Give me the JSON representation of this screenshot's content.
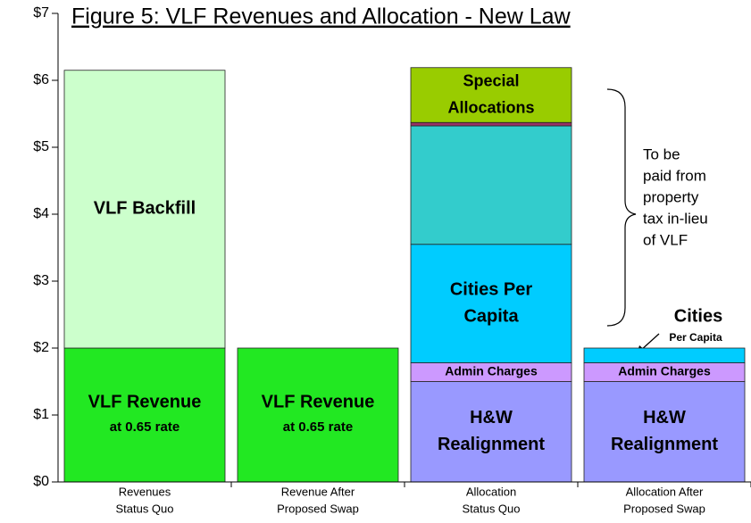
{
  "chart_data": {
    "type": "stacked_bar",
    "title": "Figure 5:  VLF Revenues and Allocation - New Law",
    "categories": [
      [
        "Revenues",
        "Status Quo"
      ],
      [
        "Revenue After",
        "Proposed Swap"
      ],
      [
        "Allocation",
        "Status Quo"
      ],
      [
        "Allocation After",
        "Proposed Swap"
      ]
    ],
    "ylim": [
      0,
      7
    ],
    "yticks": [
      {
        "value": 0,
        "label": "$0"
      },
      {
        "value": 1,
        "label": "$1"
      },
      {
        "value": 2,
        "label": "$2"
      },
      {
        "value": 3,
        "label": "$3"
      },
      {
        "value": 4,
        "label": "$4"
      },
      {
        "value": 5,
        "label": "$5"
      },
      {
        "value": 6,
        "label": "$6"
      },
      {
        "value": 7,
        "label": "$7"
      }
    ],
    "series": [
      {
        "color": "#22e822",
        "values": [
          2.0,
          2.0,
          null,
          null
        ],
        "labels": [
          [
            "VLF Revenue",
            "at 0.65 rate"
          ],
          [
            "VLF Revenue",
            "at 0.65 rate"
          ],
          null,
          null
        ]
      },
      {
        "color": "#ccffcc",
        "values": [
          4.15,
          null,
          null,
          null
        ],
        "labels": [
          [
            "VLF Backfill"
          ],
          null,
          null,
          null
        ]
      },
      {
        "color": "#9999ff",
        "values": [
          null,
          null,
          1.5,
          1.5
        ],
        "labels": [
          null,
          null,
          [
            "H&W",
            "Realignment"
          ],
          [
            "H&W",
            "Realignment"
          ]
        ]
      },
      {
        "color": "#cc99ff",
        "values": [
          null,
          null,
          0.28,
          0.28
        ],
        "labels": [
          null,
          null,
          [
            "Admin Charges"
          ],
          [
            "Admin Charges"
          ]
        ]
      },
      {
        "color": "#00ccff",
        "values": [
          null,
          null,
          1.77,
          0.22
        ],
        "labels": [
          null,
          null,
          [
            "Cities Per",
            "Capita"
          ],
          null
        ]
      },
      {
        "color": "#33cccc",
        "values": [
          null,
          null,
          1.77,
          null
        ]
      },
      {
        "color": "#993366",
        "values": [
          null,
          null,
          0.05,
          null
        ]
      },
      {
        "color": "#99cc00",
        "values": [
          null,
          null,
          0.82,
          null
        ],
        "labels": [
          null,
          null,
          [
            "Special",
            "Allocations"
          ],
          null
        ]
      }
    ],
    "annotations": {
      "brace_note": [
        "To be",
        "paid from",
        "property",
        "tax in-lieu",
        "of VLF"
      ],
      "cities_note": [
        "Cities",
        "Per Capita"
      ]
    }
  }
}
